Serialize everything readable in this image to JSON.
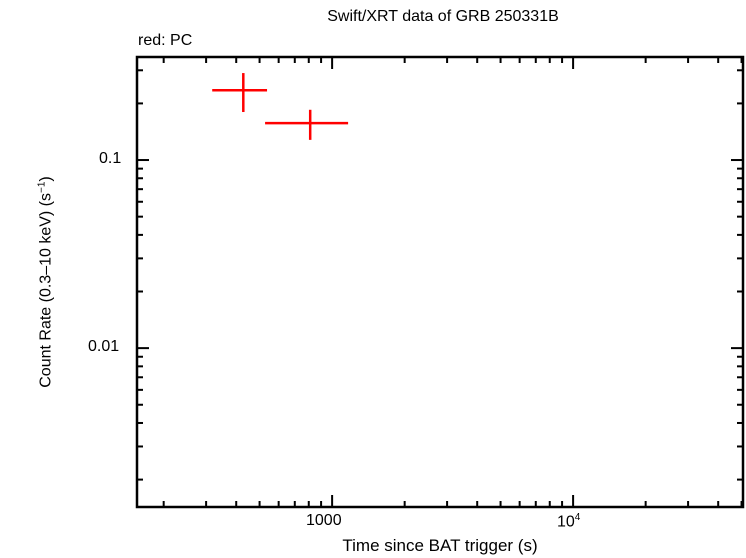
{
  "chart_data": {
    "type": "scatter",
    "title": "Swift/XRT data of GRB 250331B",
    "annotation": "red: PC",
    "xlabel": "Time since BAT trigger (s)",
    "ylabel": "Count Rate (0.3–10 keV) (s⁻¹)",
    "xscale": "log",
    "yscale": "log",
    "xlim": [
      155,
      50700
    ],
    "ylim": [
      0.00143,
      0.353
    ],
    "x_ticks": [
      {
        "value": 1000,
        "label": "1000"
      },
      {
        "value": 10000,
        "label": "10^4"
      }
    ],
    "y_ticks": [
      {
        "value": 0.1,
        "label": "0.1"
      },
      {
        "value": 0.01,
        "label": "0.01"
      }
    ],
    "grid": false,
    "series": [
      {
        "name": "PC",
        "color": "#ff0000",
        "points": [
          {
            "x": 428,
            "xmin": 318,
            "xmax": 537,
            "y": 0.235,
            "ymin": 0.18,
            "ymax": 0.29
          },
          {
            "x": 811,
            "xmin": 527,
            "xmax": 1165,
            "y": 0.157,
            "ymin": 0.128,
            "ymax": 0.185
          }
        ]
      }
    ]
  },
  "labels": {
    "title": "Swift/XRT data of GRB 250331B",
    "legend_note": "red: PC",
    "xlabel": "Time since BAT trigger (s)",
    "ylabel_main": "Count Rate (0.3–10 keV) (s",
    "ylabel_sup": "−1",
    "ylabel_end": ")",
    "xtick_1000": "1000",
    "xtick_1e4_base": "10",
    "xtick_1e4_exp": "4",
    "ytick_01": "0.1",
    "ytick_001": "0.01"
  }
}
